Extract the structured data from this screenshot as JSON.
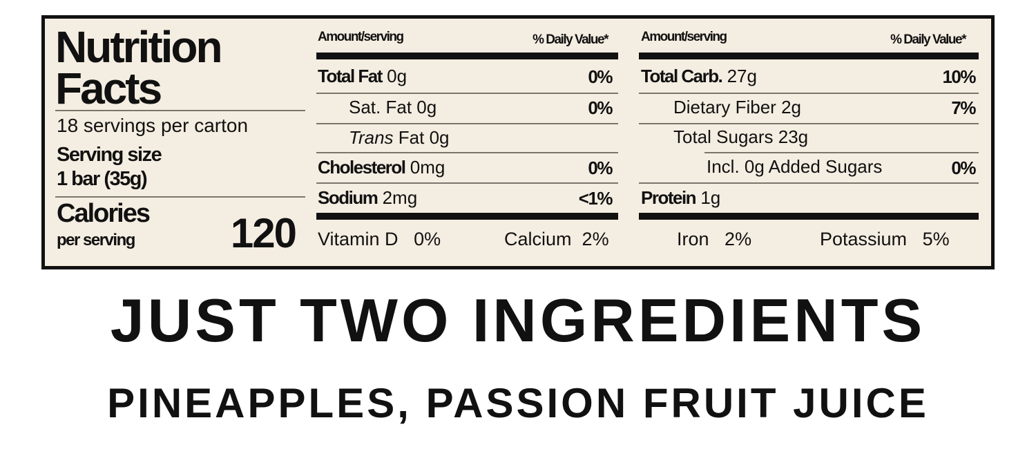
{
  "label": {
    "title_line1": "Nutrition",
    "title_line2": "Facts",
    "servings_per_container": "18 servings per carton",
    "serving_size_label": "Serving size",
    "serving_size_value": "1 bar (35g)",
    "calories_label": "Calories",
    "calories_sub": "per serving",
    "calories_value": "120",
    "left_table": {
      "header_amount": "Amount/serving",
      "header_dv": "% Daily Value*",
      "rows": [
        {
          "name": "Total Fat",
          "amount": "0g",
          "dv": "0%"
        },
        {
          "name": "Sat. Fat",
          "amount": "0g",
          "dv": "0%"
        },
        {
          "name": "Trans",
          "name_rest": "Fat",
          "amount": "0g",
          "dv": ""
        },
        {
          "name": "Cholesterol",
          "amount": "0mg",
          "dv": "0%"
        },
        {
          "name": "Sodium",
          "amount": "2mg",
          "dv": "<1%"
        }
      ],
      "vitamins": [
        {
          "name": "Vitamin D",
          "dv": "0%"
        },
        {
          "name": "Calcium",
          "dv": "2%"
        }
      ]
    },
    "right_table": {
      "header_amount": "Amount/serving",
      "header_dv": "% Daily Value*",
      "rows": [
        {
          "name": "Total Carb.",
          "amount": "27g",
          "dv": "10%"
        },
        {
          "name": "Dietary Fiber",
          "amount": "2g",
          "dv": "7%"
        },
        {
          "name": "Total Sugars",
          "amount": "23g",
          "dv": ""
        },
        {
          "name": "Incl. 0g Added Sugars",
          "amount": "",
          "dv": "0%"
        },
        {
          "name": "Protein",
          "amount": "1g",
          "dv": ""
        }
      ],
      "vitamins": [
        {
          "name": "Iron",
          "dv": "2%"
        },
        {
          "name": "Potassium",
          "dv": "5%"
        }
      ]
    }
  },
  "headline": "JUST TWO INGREDIENTS",
  "ingredients": "PINEAPPLES, PASSION FRUIT JUICE",
  "colors": {
    "panel_bg": "#f4ede1",
    "ink": "#111111"
  }
}
